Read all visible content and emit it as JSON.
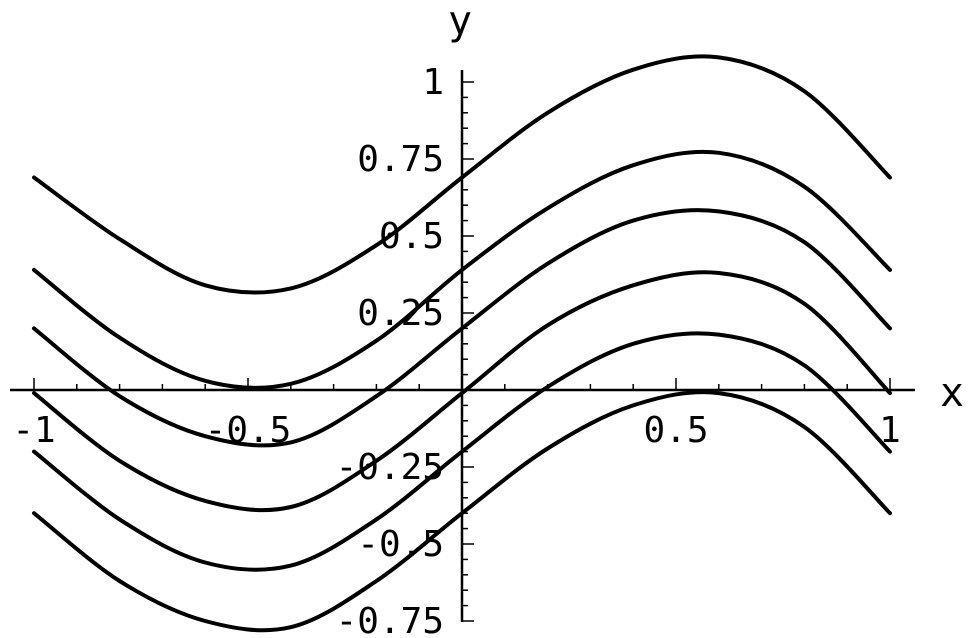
{
  "chart_data": {
    "type": "line",
    "title": "",
    "xlabel": "x",
    "ylabel": "y",
    "xlim": [
      -1.05,
      1.05
    ],
    "ylim": [
      -0.85,
      1.15
    ],
    "x_ticks": [
      {
        "value": -1,
        "label": "-1"
      },
      {
        "value": -0.5,
        "label": "-0.5"
      },
      {
        "value": 0.5,
        "label": "0.5"
      },
      {
        "value": 1,
        "label": "1"
      }
    ],
    "y_ticks": [
      {
        "value": -0.75,
        "label": "-0.75"
      },
      {
        "value": -0.5,
        "label": "-0.5"
      },
      {
        "value": -0.25,
        "label": "-0.25"
      },
      {
        "value": 0.25,
        "label": "0.25"
      },
      {
        "value": 0.5,
        "label": "0.5"
      },
      {
        "value": 0.75,
        "label": "0.75"
      },
      {
        "value": 1,
        "label": "1"
      }
    ],
    "x": [
      -1.0,
      -0.8,
      -0.6,
      -0.4,
      -0.2,
      0.0,
      0.2,
      0.4,
      0.6,
      0.8,
      1.0
    ],
    "series": [
      {
        "values": [
          0.69,
          0.49,
          0.34,
          0.33,
          0.47,
          0.69,
          0.9,
          1.04,
          1.08,
          0.97,
          0.69
        ]
      },
      {
        "values": [
          0.39,
          0.17,
          0.03,
          0.02,
          0.16,
          0.39,
          0.59,
          0.73,
          0.77,
          0.66,
          0.39
        ]
      },
      {
        "values": [
          0.2,
          -0.02,
          -0.15,
          -0.17,
          -0.02,
          0.2,
          0.41,
          0.55,
          0.58,
          0.48,
          0.2
        ]
      },
      {
        "values": [
          -0.01,
          -0.23,
          -0.36,
          -0.38,
          -0.23,
          -0.01,
          0.21,
          0.34,
          0.38,
          0.28,
          -0.01
        ]
      },
      {
        "values": [
          -0.2,
          -0.42,
          -0.56,
          -0.57,
          -0.42,
          -0.2,
          0.01,
          0.15,
          0.18,
          0.08,
          -0.2
        ]
      },
      {
        "values": [
          -0.4,
          -0.62,
          -0.75,
          -0.77,
          -0.62,
          -0.4,
          -0.19,
          -0.05,
          -0.01,
          -0.12,
          -0.4
        ]
      }
    ]
  }
}
